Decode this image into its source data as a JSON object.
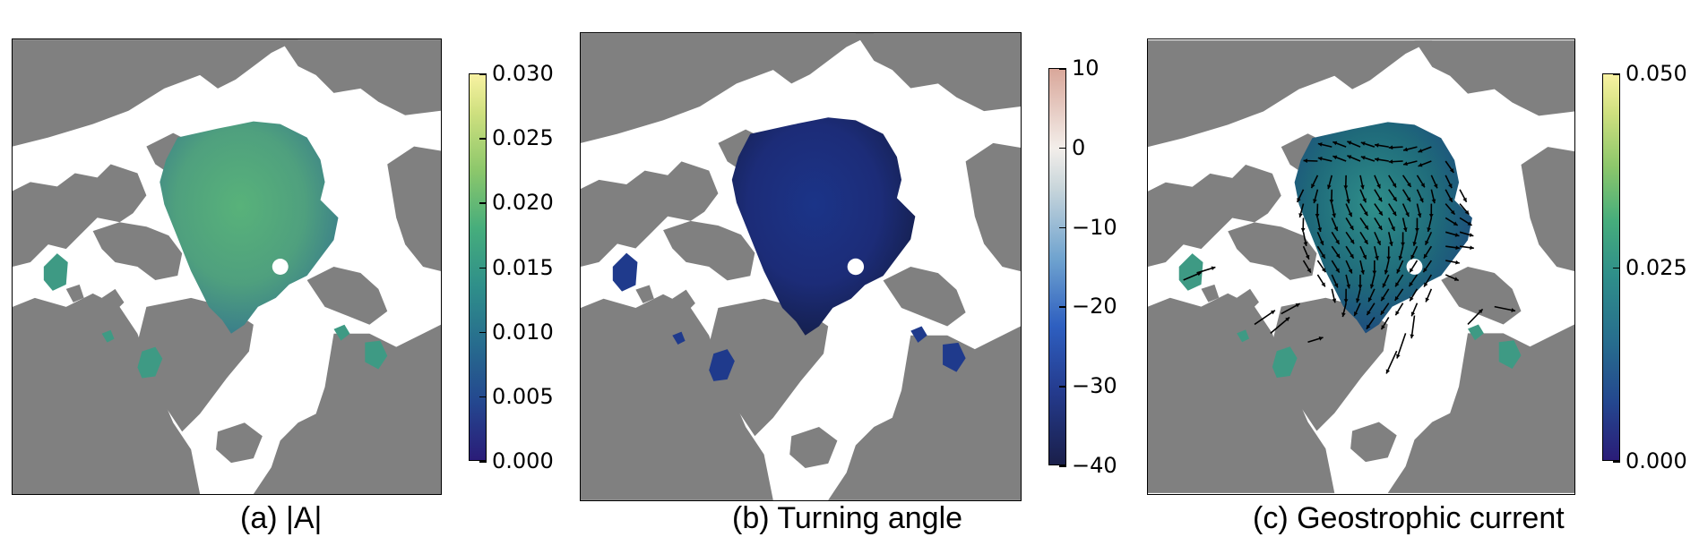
{
  "chart_data": [
    {
      "type": "heatmap",
      "title": "(a) |A|",
      "colormap": "yellow-green-blue (cmocean haline)",
      "colorbar": {
        "range": [
          0.0,
          0.03
        ],
        "ticks": [
          "0.000",
          "0.005",
          "0.010",
          "0.015",
          "0.020",
          "0.025",
          "0.030"
        ]
      },
      "colors": {
        "low": "#2a1c78",
        "mid": "#2f8f8a",
        "high": "#f8f2a2",
        "field": "#58b27a"
      }
    },
    {
      "type": "heatmap",
      "title": "(b) Turning angle",
      "colormap": "dark blue to light pink",
      "colorbar": {
        "range": [
          -40,
          10
        ],
        "ticks": [
          "−40",
          "−30",
          "−20",
          "−10",
          "0",
          "10"
        ]
      },
      "colors": {
        "low": "#1a1f4a",
        "mid": "#2e5fc0",
        "high": "#d9a79a",
        "field": "#1c2c78"
      }
    },
    {
      "type": "heatmap",
      "title": "(c) Geostrophic current",
      "colormap": "yellow-green-blue (cmocean haline)",
      "colorbar": {
        "range": [
          0.0,
          0.05
        ],
        "ticks": [
          "0.000",
          "0.025",
          "0.050"
        ]
      },
      "overlay": "black velocity arrows",
      "colors": {
        "low": "#2a1c78",
        "mid": "#2f8f8a",
        "high": "#f8f2a2",
        "field": "#1f6a7a"
      }
    }
  ],
  "colors": {
    "land": "#808080",
    "ocean": "#ffffff"
  }
}
